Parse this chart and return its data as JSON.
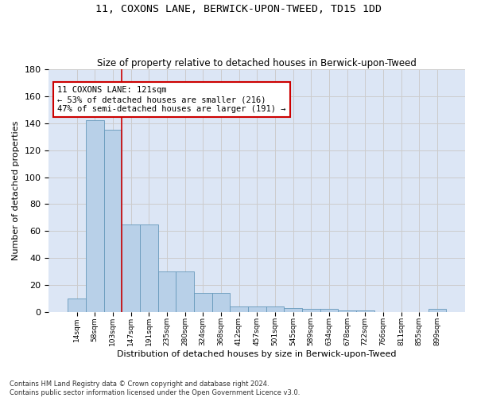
{
  "title": "11, COXONS LANE, BERWICK-UPON-TWEED, TD15 1DD",
  "subtitle": "Size of property relative to detached houses in Berwick-upon-Tweed",
  "xlabel": "Distribution of detached houses by size in Berwick-upon-Tweed",
  "ylabel": "Number of detached properties",
  "bar_values": [
    10,
    142,
    135,
    65,
    65,
    30,
    30,
    14,
    14,
    4,
    4,
    4,
    3,
    2,
    2,
    1,
    1,
    0,
    0,
    0,
    2
  ],
  "bar_labels": [
    "14sqm",
    "58sqm",
    "103sqm",
    "147sqm",
    "191sqm",
    "235sqm",
    "280sqm",
    "324sqm",
    "368sqm",
    "412sqm",
    "457sqm",
    "501sqm",
    "545sqm",
    "589sqm",
    "634sqm",
    "678sqm",
    "722sqm",
    "766sqm",
    "811sqm",
    "855sqm",
    "899sqm"
  ],
  "bar_color": "#b8d0e8",
  "bar_edge_color": "#6699bb",
  "annotation_line1": "11 COXONS LANE: 121sqm",
  "annotation_line2": "← 53% of detached houses are smaller (216)",
  "annotation_line3": "47% of semi-detached houses are larger (191) →",
  "annotation_box_color": "#cc0000",
  "vline_x": 2.5,
  "vline_color": "#cc0000",
  "ylim": [
    0,
    180
  ],
  "yticks": [
    0,
    20,
    40,
    60,
    80,
    100,
    120,
    140,
    160,
    180
  ],
  "grid_color": "#cccccc",
  "bg_color": "#dce6f5",
  "footer": "Contains HM Land Registry data © Crown copyright and database right 2024.\nContains public sector information licensed under the Open Government Licence v3.0."
}
